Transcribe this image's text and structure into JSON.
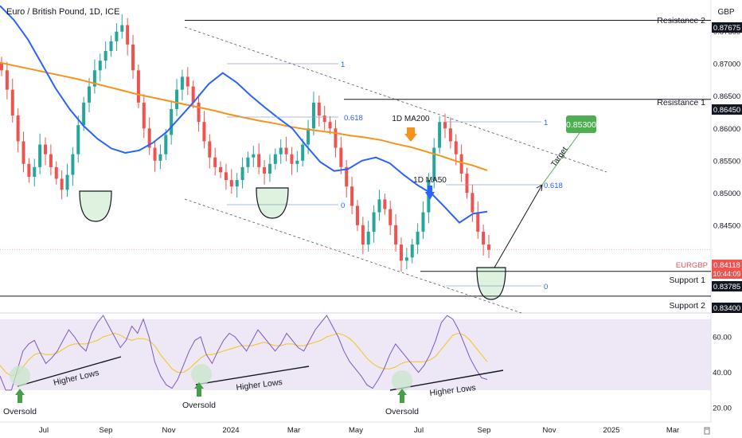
{
  "header": {
    "title": "Euro / British Pound, 1D, ICE",
    "currency": "GBP"
  },
  "price_axis": {
    "ticks": [
      {
        "value": 0.845,
        "label": "0.84500"
      },
      {
        "value": 0.85,
        "label": "0.85000"
      },
      {
        "value": 0.855,
        "label": "0.85500"
      },
      {
        "value": 0.86,
        "label": "0.86000"
      },
      {
        "value": 0.865,
        "label": "0.86500"
      },
      {
        "value": 0.87,
        "label": "0.87000"
      },
      {
        "value": 0.875,
        "label": "0.87500"
      }
    ]
  },
  "rsi_axis": {
    "ticks": [
      {
        "value": 20,
        "label": "20.00"
      },
      {
        "value": 40,
        "label": "40.00"
      },
      {
        "value": 60,
        "label": "60.00"
      }
    ]
  },
  "time_axis": {
    "ticks": [
      {
        "label": "Jul"
      },
      {
        "label": "Sep"
      },
      {
        "label": "Nov"
      },
      {
        "label": "2024"
      },
      {
        "label": "Mar"
      },
      {
        "label": "May"
      },
      {
        "label": "Jul"
      },
      {
        "label": "Sep"
      },
      {
        "label": "Nov"
      },
      {
        "label": "2025"
      },
      {
        "label": "Mar"
      }
    ]
  },
  "levels": {
    "resistance_2": {
      "label": "Resistance 2",
      "value": 0.87675,
      "price": "0.87675"
    },
    "resistance_1": {
      "label": "Resistance 1",
      "value": 0.8645,
      "price": "0.86450"
    },
    "support_1": {
      "label": "Support 1",
      "value": 0.83785,
      "price": "0.83785"
    },
    "support_2": {
      "label": "Support 2",
      "value": 0.834,
      "price": "0.83400"
    }
  },
  "current": {
    "symbol": "EURGBP",
    "value": 0.84118,
    "price": "0.84118",
    "countdown": "10:44:09"
  },
  "annotations": {
    "ma200": "1D MA200",
    "ma50": "1D MA50",
    "target_text": "Target",
    "target_price": "0.85300",
    "target_value": 0.853,
    "higher_lows": "Higher Lows",
    "oversold": "Oversold",
    "fib_a_top": "1",
    "fib_a_mid": "0.618",
    "fib_a_bottom": "0",
    "fib_b_top": "1",
    "fib_b_mid": "0.618",
    "fib_b_bottom": "0"
  },
  "colors": {
    "candle_up": "#26a69a",
    "candle_down": "#ef5350",
    "ma200": "#f7931a",
    "ma50": "#2962ff",
    "rsi_line": "#7e57c2",
    "rsi_ma": "#f5c518",
    "rsi_band": "#ede7f6",
    "target_box": "#4caf50",
    "oversold_circle": "#c8e6c9",
    "oversold_arrow": "#43a047",
    "ma200_arrow": "#f7931a",
    "ma50_arrow": "#2962ff"
  },
  "chart_data": {
    "type": "candlestick",
    "price_range": [
      0.8314,
      0.8799
    ],
    "rsi_range": [
      12,
      73
    ],
    "rsi_band": [
      30,
      70
    ],
    "ma200": [
      0.8702,
      0.8697,
      0.8692,
      0.8687,
      0.8682,
      0.8677,
      0.8671,
      0.8665,
      0.8659,
      0.8653,
      0.8648,
      0.8643,
      0.8638,
      0.8633,
      0.8628,
      0.8622,
      0.8617,
      0.8612,
      0.8608,
      0.8603,
      0.8599,
      0.8596,
      0.8593,
      0.8589,
      0.8586,
      0.8582,
      0.8576,
      0.8571,
      0.8564,
      0.8557,
      0.8549,
      0.8543,
      0.8535
    ],
    "ma50": [
      0.879,
      0.8768,
      0.8738,
      0.87,
      0.8662,
      0.863,
      0.8604,
      0.8584,
      0.8569,
      0.8562,
      0.8566,
      0.8578,
      0.8595,
      0.8619,
      0.8643,
      0.8669,
      0.8686,
      0.8671,
      0.8651,
      0.8633,
      0.8616,
      0.86,
      0.8573,
      0.8548,
      0.8534,
      0.8537,
      0.855,
      0.8555,
      0.8546,
      0.8528,
      0.8512,
      0.8499,
      0.8477,
      0.8454,
      0.8468,
      0.8471
    ],
    "candles_close": [
      0.869,
      0.866,
      0.862,
      0.858,
      0.8545,
      0.8525,
      0.854,
      0.8575,
      0.856,
      0.854,
      0.8522,
      0.8505,
      0.8528,
      0.856,
      0.8605,
      0.864,
      0.8665,
      0.869,
      0.8705,
      0.872,
      0.8735,
      0.875,
      0.876,
      0.873,
      0.869,
      0.864,
      0.86,
      0.857,
      0.855,
      0.856,
      0.859,
      0.863,
      0.866,
      0.868,
      0.8665,
      0.864,
      0.861,
      0.858,
      0.8555,
      0.854,
      0.8532,
      0.852,
      0.851,
      0.852,
      0.854,
      0.8555,
      0.856,
      0.854,
      0.853,
      0.8545,
      0.856,
      0.857,
      0.856,
      0.8545,
      0.855,
      0.8575,
      0.86,
      0.864,
      0.862,
      0.861,
      0.86,
      0.857,
      0.854,
      0.851,
      0.848,
      0.845,
      0.842,
      0.844,
      0.847,
      0.849,
      0.8475,
      0.845,
      0.842,
      0.8395,
      0.84,
      0.842,
      0.844,
      0.847,
      0.852,
      0.857,
      0.861,
      0.86,
      0.858,
      0.856,
      0.853,
      0.85,
      0.847,
      0.844,
      0.842,
      0.8412
    ],
    "rsi": [
      38,
      30,
      30,
      41,
      52,
      56,
      58,
      51,
      45,
      48,
      52,
      58,
      64,
      60,
      55,
      52,
      62,
      68,
      72,
      66,
      60,
      54,
      58,
      66,
      62,
      70,
      60,
      46,
      38,
      33,
      31,
      36,
      44,
      52,
      58,
      60,
      50,
      45,
      52,
      58,
      62,
      60,
      56,
      52,
      58,
      64,
      60,
      56,
      52,
      56,
      62,
      58,
      54,
      52,
      58,
      64,
      68,
      72,
      66,
      60,
      52,
      46,
      42,
      38,
      33,
      31,
      36,
      42,
      50,
      56,
      52,
      48,
      44,
      40,
      44,
      50,
      58,
      68,
      72,
      70,
      64,
      56,
      48,
      42,
      37,
      36
    ],
    "rsi_ma": [
      44,
      40,
      38,
      39,
      43,
      47,
      50,
      51,
      50,
      50,
      51,
      53,
      55,
      56,
      56,
      56,
      57,
      58,
      60,
      61,
      62,
      61,
      59,
      58,
      59,
      59,
      58,
      55,
      50,
      46,
      42,
      40,
      40,
      42,
      45,
      48,
      50,
      50,
      51,
      52,
      53,
      54,
      55,
      55,
      55,
      56,
      57,
      56,
      55,
      55,
      56,
      56,
      55,
      55,
      56,
      57,
      58,
      60,
      61,
      62,
      61,
      59,
      56,
      52,
      48,
      45,
      43,
      42,
      42,
      43,
      45,
      46,
      46,
      46,
      46,
      47,
      49,
      53,
      57,
      61,
      62,
      61,
      58,
      54,
      50,
      46
    ]
  }
}
